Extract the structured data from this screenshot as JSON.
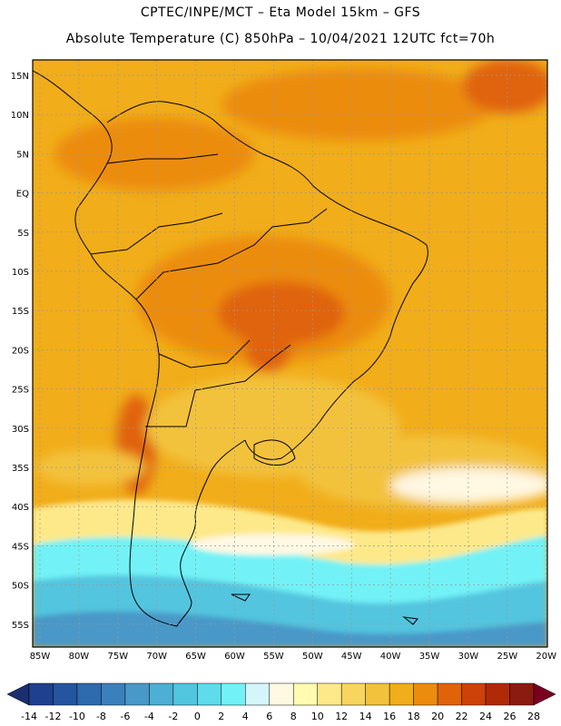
{
  "title_line1": "CPTEC/INPE/MCT –  Eta Model 15km – GFS",
  "title_line2": "Absolute Temperature (C) 850hPa – 10/04/2021 12UTC fct=70h",
  "lat_labels": [
    "15N",
    "10N",
    "5N",
    "EQ",
    "5S",
    "10S",
    "15S",
    "20S",
    "25S",
    "30S",
    "35S",
    "40S",
    "45S",
    "50S",
    "55S"
  ],
  "lon_labels": [
    "85W",
    "80W",
    "75W",
    "70W",
    "65W",
    "60W",
    "55W",
    "50W",
    "45W",
    "40W",
    "35W",
    "30W",
    "25W",
    "20W"
  ],
  "colorbar": {
    "labels": [
      "-14",
      "-12",
      "-10",
      "-8",
      "-6",
      "-4",
      "-2",
      "0",
      "2",
      "4",
      "6",
      "8",
      "10",
      "12",
      "14",
      "16",
      "18",
      "20",
      "22",
      "24",
      "26",
      "28"
    ],
    "colors": [
      "#1f3f8f",
      "#24559f",
      "#2d6aae",
      "#3a80bd",
      "#4898c8",
      "#4dafd4",
      "#52c5df",
      "#5fdceb",
      "#72f2f6",
      "#d4f6fb",
      "#fff8e3",
      "#fffcb0",
      "#fde98a",
      "#f8d55e",
      "#f3c23d",
      "#f1ad1a",
      "#ec8c0e",
      "#e06309",
      "#cc4208",
      "#b02a08",
      "#8b1a10"
    ],
    "low_arrow_color": "#1b2f6e",
    "high_arrow_color": "#7a0020"
  },
  "ocean_color": "#f1ad1a",
  "field_colors": {
    "warm": "#ec8c0e",
    "hot": "#e06309",
    "very_hot": "#cc4208",
    "mild": "#f3c23d",
    "cool": "#f8d55e",
    "cream": "#fff8e3",
    "pale": "#fde98a",
    "aqua": "#72f2f6",
    "cyan": "#52c5df",
    "teal": "#4898c8",
    "blue": "#3a80bd"
  }
}
